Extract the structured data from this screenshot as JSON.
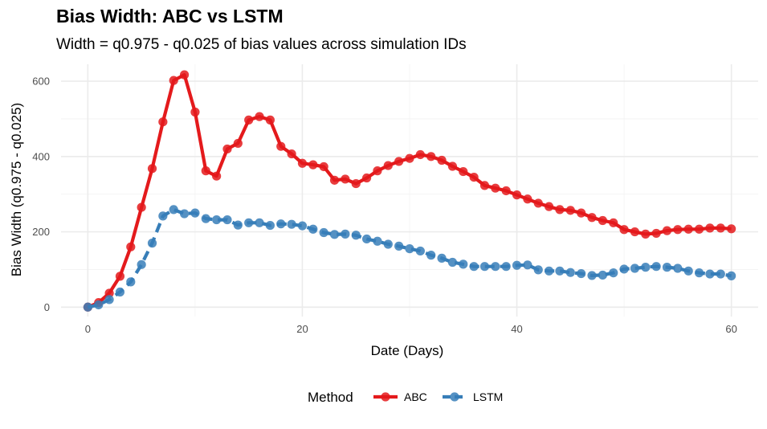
{
  "chart_data": {
    "type": "line",
    "title": "Bias Width: ABC vs LSTM",
    "subtitle": "Width = q0.975 - q0.025 of bias values across simulation IDs",
    "xlabel": "Date (Days)",
    "ylabel": "Bias Width (q0.975 - q0.025)",
    "xlim": [
      -2.5,
      62.5
    ],
    "ylim": [
      -25,
      645
    ],
    "x_ticks": [
      0,
      20,
      40,
      60
    ],
    "y_ticks": [
      0,
      200,
      400,
      600
    ],
    "grid": true,
    "legend": {
      "title": "Method",
      "position": "bottom"
    },
    "series": [
      {
        "name": "ABC",
        "color": "#e41a1c",
        "x": [
          0,
          1,
          2,
          3,
          4,
          5,
          6,
          7,
          8,
          9,
          10,
          11,
          12,
          13,
          14,
          15,
          16,
          17,
          18,
          19,
          20,
          21,
          22,
          23,
          24,
          25,
          26,
          27,
          28,
          29,
          30,
          31,
          32,
          33,
          34,
          35,
          36,
          37,
          38,
          39,
          40,
          41,
          42,
          43,
          44,
          45,
          46,
          47,
          48,
          49,
          50,
          51,
          52,
          53,
          54,
          55,
          56,
          57,
          58,
          59,
          60
        ],
        "values": [
          0,
          12,
          37,
          82,
          160,
          265,
          368,
          492,
          602,
          617,
          518,
          362,
          348,
          420,
          435,
          497,
          506,
          497,
          427,
          407,
          382,
          378,
          373,
          337,
          340,
          328,
          343,
          362,
          376,
          387,
          395,
          405,
          400,
          390,
          374,
          360,
          345,
          323,
          316,
          309,
          298,
          287,
          276,
          267,
          259,
          257,
          250,
          238,
          230,
          224,
          206,
          200,
          194,
          196,
          203,
          206,
          207,
          207,
          210,
          210,
          208
        ]
      },
      {
        "name": "LSTM",
        "color": "#377eb8",
        "x": [
          0,
          1,
          2,
          3,
          4,
          5,
          6,
          7,
          8,
          9,
          10,
          11,
          12,
          13,
          14,
          15,
          16,
          17,
          18,
          19,
          20,
          21,
          22,
          23,
          24,
          25,
          26,
          27,
          28,
          29,
          30,
          31,
          32,
          33,
          34,
          35,
          36,
          37,
          38,
          39,
          40,
          41,
          42,
          43,
          44,
          45,
          46,
          47,
          48,
          49,
          50,
          51,
          52,
          53,
          54,
          55,
          56,
          57,
          58,
          59,
          60
        ],
        "values": [
          0,
          6,
          20,
          40,
          67,
          113,
          170,
          242,
          259,
          248,
          250,
          235,
          232,
          232,
          218,
          224,
          224,
          217,
          221,
          220,
          216,
          207,
          198,
          193,
          194,
          191,
          181,
          175,
          167,
          162,
          155,
          149,
          138,
          130,
          119,
          114,
          108,
          108,
          108,
          108,
          111,
          112,
          99,
          96,
          96,
          92,
          89,
          84,
          85,
          91,
          101,
          103,
          106,
          108,
          106,
          103,
          96,
          91,
          88,
          88,
          83
        ]
      }
    ]
  }
}
